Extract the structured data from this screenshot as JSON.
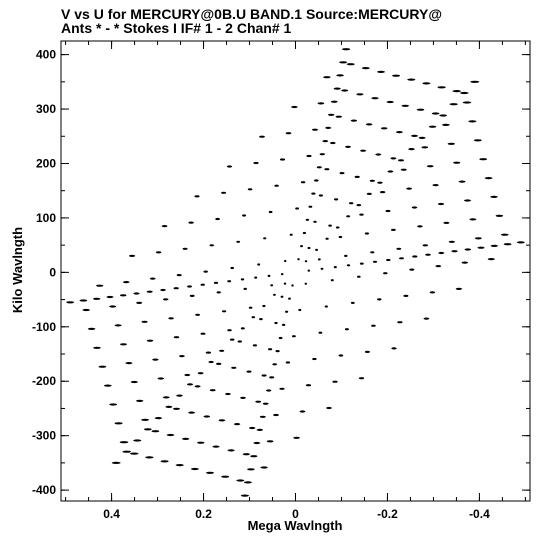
{
  "header": {
    "line1": "V vs U for MERCURY@0B.U BAND.1   Source:MERCURY@",
    "line2": "Ants * - *    Stokes I  IF# 1 - 2  Chan# 1"
  },
  "chart_data": {
    "type": "scatter",
    "title": "V vs U for MERCURY@0B.U BAND.1   Source:MERCURY@",
    "subtitle": "Ants * - *    Stokes I  IF# 1 - 2  Chan# 1",
    "xlabel": "Mega Wavlngth",
    "ylabel": "Kilo Wavlngth",
    "x_units": "Mega Wavelength",
    "y_units": "Kilo Wavelength",
    "xlim": [
      0.51,
      -0.51
    ],
    "ylim": [
      -420,
      425
    ],
    "x_reversed": true,
    "x_ticks": [
      {
        "value": 0.4,
        "label": "0.4"
      },
      {
        "value": 0.2,
        "label": "0.2"
      },
      {
        "value": 0.0,
        "label": "0"
      },
      {
        "value": -0.2,
        "label": "-0.2"
      },
      {
        "value": -0.4,
        "label": "-0.4"
      }
    ],
    "y_ticks": [
      {
        "value": 400,
        "label": "400"
      },
      {
        "value": 300,
        "label": "300"
      },
      {
        "value": 200,
        "label": "200"
      },
      {
        "value": 100,
        "label": "100"
      },
      {
        "value": 0,
        "label": "0"
      },
      {
        "value": -100,
        "label": "-100"
      },
      {
        "value": -200,
        "label": "-200"
      },
      {
        "value": -300,
        "label": "-300"
      },
      {
        "value": -400,
        "label": "-400"
      }
    ],
    "grid": false,
    "legend": "none",
    "marker_color": "#000000",
    "pattern": {
      "description": "six-pointed-star uv coverage: 12 arms (3 baseline sets, each with conjugate pairs), 17 points per arm",
      "arm_sets": [
        {
          "angle_deg": 0,
          "u_extent": -0.49,
          "v_extent": 55
        },
        {
          "angle_deg": 120,
          "u_extent": -0.49,
          "v_extent": 55
        },
        {
          "angle_deg": 240,
          "u_extent": -0.49,
          "v_extent": 55
        }
      ]
    }
  }
}
